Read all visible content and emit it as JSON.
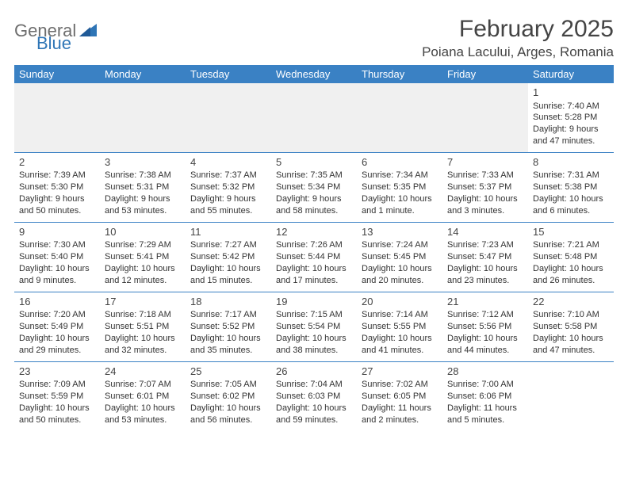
{
  "logo": {
    "general": "General",
    "blue": "Blue"
  },
  "title": "February 2025",
  "location": "Poiana Lacului, Arges, Romania",
  "header_bg": "#3a81c4",
  "rule_color": "#3a81c4",
  "weekdays": [
    "Sunday",
    "Monday",
    "Tuesday",
    "Wednesday",
    "Thursday",
    "Friday",
    "Saturday"
  ],
  "weeks": [
    [
      null,
      null,
      null,
      null,
      null,
      null,
      {
        "n": "1",
        "sr": "Sunrise: 7:40 AM",
        "ss": "Sunset: 5:28 PM",
        "dl": "Daylight: 9 hours and 47 minutes."
      }
    ],
    [
      {
        "n": "2",
        "sr": "Sunrise: 7:39 AM",
        "ss": "Sunset: 5:30 PM",
        "dl": "Daylight: 9 hours and 50 minutes."
      },
      {
        "n": "3",
        "sr": "Sunrise: 7:38 AM",
        "ss": "Sunset: 5:31 PM",
        "dl": "Daylight: 9 hours and 53 minutes."
      },
      {
        "n": "4",
        "sr": "Sunrise: 7:37 AM",
        "ss": "Sunset: 5:32 PM",
        "dl": "Daylight: 9 hours and 55 minutes."
      },
      {
        "n": "5",
        "sr": "Sunrise: 7:35 AM",
        "ss": "Sunset: 5:34 PM",
        "dl": "Daylight: 9 hours and 58 minutes."
      },
      {
        "n": "6",
        "sr": "Sunrise: 7:34 AM",
        "ss": "Sunset: 5:35 PM",
        "dl": "Daylight: 10 hours and 1 minute."
      },
      {
        "n": "7",
        "sr": "Sunrise: 7:33 AM",
        "ss": "Sunset: 5:37 PM",
        "dl": "Daylight: 10 hours and 3 minutes."
      },
      {
        "n": "8",
        "sr": "Sunrise: 7:31 AM",
        "ss": "Sunset: 5:38 PM",
        "dl": "Daylight: 10 hours and 6 minutes."
      }
    ],
    [
      {
        "n": "9",
        "sr": "Sunrise: 7:30 AM",
        "ss": "Sunset: 5:40 PM",
        "dl": "Daylight: 10 hours and 9 minutes."
      },
      {
        "n": "10",
        "sr": "Sunrise: 7:29 AM",
        "ss": "Sunset: 5:41 PM",
        "dl": "Daylight: 10 hours and 12 minutes."
      },
      {
        "n": "11",
        "sr": "Sunrise: 7:27 AM",
        "ss": "Sunset: 5:42 PM",
        "dl": "Daylight: 10 hours and 15 minutes."
      },
      {
        "n": "12",
        "sr": "Sunrise: 7:26 AM",
        "ss": "Sunset: 5:44 PM",
        "dl": "Daylight: 10 hours and 17 minutes."
      },
      {
        "n": "13",
        "sr": "Sunrise: 7:24 AM",
        "ss": "Sunset: 5:45 PM",
        "dl": "Daylight: 10 hours and 20 minutes."
      },
      {
        "n": "14",
        "sr": "Sunrise: 7:23 AM",
        "ss": "Sunset: 5:47 PM",
        "dl": "Daylight: 10 hours and 23 minutes."
      },
      {
        "n": "15",
        "sr": "Sunrise: 7:21 AM",
        "ss": "Sunset: 5:48 PM",
        "dl": "Daylight: 10 hours and 26 minutes."
      }
    ],
    [
      {
        "n": "16",
        "sr": "Sunrise: 7:20 AM",
        "ss": "Sunset: 5:49 PM",
        "dl": "Daylight: 10 hours and 29 minutes."
      },
      {
        "n": "17",
        "sr": "Sunrise: 7:18 AM",
        "ss": "Sunset: 5:51 PM",
        "dl": "Daylight: 10 hours and 32 minutes."
      },
      {
        "n": "18",
        "sr": "Sunrise: 7:17 AM",
        "ss": "Sunset: 5:52 PM",
        "dl": "Daylight: 10 hours and 35 minutes."
      },
      {
        "n": "19",
        "sr": "Sunrise: 7:15 AM",
        "ss": "Sunset: 5:54 PM",
        "dl": "Daylight: 10 hours and 38 minutes."
      },
      {
        "n": "20",
        "sr": "Sunrise: 7:14 AM",
        "ss": "Sunset: 5:55 PM",
        "dl": "Daylight: 10 hours and 41 minutes."
      },
      {
        "n": "21",
        "sr": "Sunrise: 7:12 AM",
        "ss": "Sunset: 5:56 PM",
        "dl": "Daylight: 10 hours and 44 minutes."
      },
      {
        "n": "22",
        "sr": "Sunrise: 7:10 AM",
        "ss": "Sunset: 5:58 PM",
        "dl": "Daylight: 10 hours and 47 minutes."
      }
    ],
    [
      {
        "n": "23",
        "sr": "Sunrise: 7:09 AM",
        "ss": "Sunset: 5:59 PM",
        "dl": "Daylight: 10 hours and 50 minutes."
      },
      {
        "n": "24",
        "sr": "Sunrise: 7:07 AM",
        "ss": "Sunset: 6:01 PM",
        "dl": "Daylight: 10 hours and 53 minutes."
      },
      {
        "n": "25",
        "sr": "Sunrise: 7:05 AM",
        "ss": "Sunset: 6:02 PM",
        "dl": "Daylight: 10 hours and 56 minutes."
      },
      {
        "n": "26",
        "sr": "Sunrise: 7:04 AM",
        "ss": "Sunset: 6:03 PM",
        "dl": "Daylight: 10 hours and 59 minutes."
      },
      {
        "n": "27",
        "sr": "Sunrise: 7:02 AM",
        "ss": "Sunset: 6:05 PM",
        "dl": "Daylight: 11 hours and 2 minutes."
      },
      {
        "n": "28",
        "sr": "Sunrise: 7:00 AM",
        "ss": "Sunset: 6:06 PM",
        "dl": "Daylight: 11 hours and 5 minutes."
      },
      null
    ]
  ]
}
